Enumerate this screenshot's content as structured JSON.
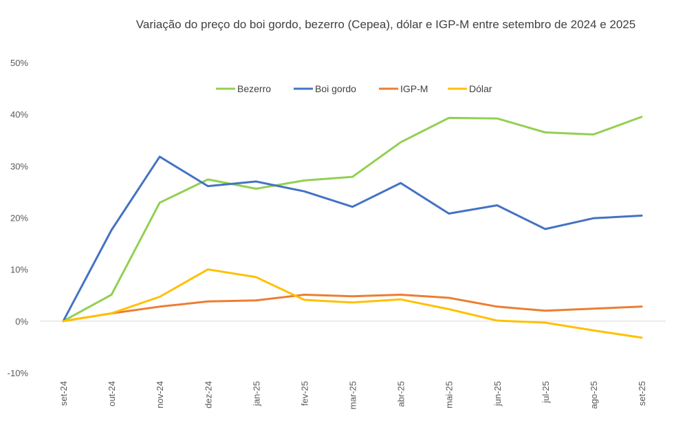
{
  "chart_data": {
    "type": "line",
    "title": "Variação do preço do boi gordo, bezerro (Cepea), dólar e IGP-M entre setembro de 2024 e 2025",
    "xlabel": "",
    "ylabel": "",
    "ylim": [
      -10,
      50
    ],
    "yticks": [
      -10,
      0,
      10,
      20,
      30,
      40,
      50
    ],
    "ytick_labels": [
      "-10%",
      "0%",
      "10%",
      "20%",
      "30%",
      "40%",
      "50%"
    ],
    "categories": [
      "set-24",
      "out-24",
      "nov-24",
      "dez-24",
      "jan-25",
      "fev-25",
      "mar-25",
      "abr-25",
      "mai-25",
      "jun-25",
      "jul-25",
      "ago-25",
      "set-25"
    ],
    "legend_position": "top-center",
    "series": [
      {
        "name": "Bezerro",
        "color": "#92d050",
        "values": [
          0,
          5.1,
          22.9,
          27.4,
          25.6,
          27.2,
          27.9,
          34.6,
          39.3,
          39.2,
          36.5,
          36.1,
          39.5
        ]
      },
      {
        "name": "Boi gordo",
        "color": "#4472c4",
        "values": [
          0,
          17.6,
          31.8,
          26.1,
          27.0,
          25.1,
          22.1,
          26.7,
          20.8,
          22.4,
          17.8,
          19.9,
          20.4
        ]
      },
      {
        "name": "IGP-M",
        "color": "#ed7d31",
        "values": [
          0,
          1.5,
          2.8,
          3.8,
          4.0,
          5.1,
          4.8,
          5.1,
          4.5,
          2.8,
          2.0,
          2.4,
          2.8
        ]
      },
      {
        "name": "Dólar",
        "color": "#ffc000",
        "values": [
          0,
          1.5,
          4.7,
          10.0,
          8.5,
          4.1,
          3.6,
          4.2,
          2.3,
          0.1,
          -0.3,
          -1.8,
          -3.2
        ]
      }
    ]
  }
}
